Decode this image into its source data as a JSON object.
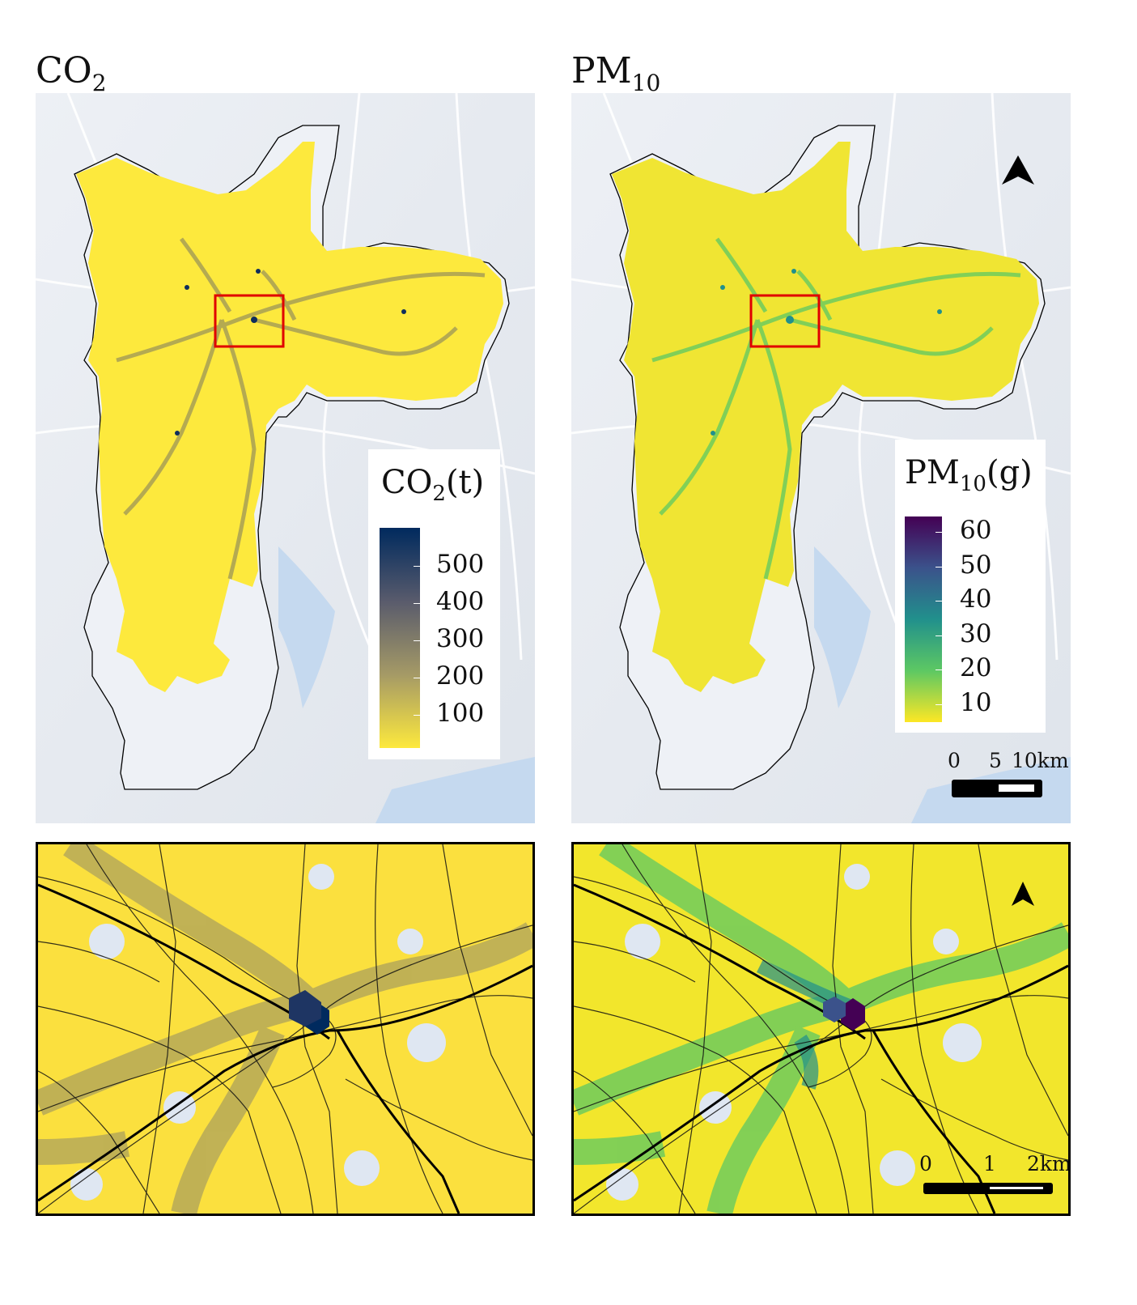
{
  "panels": {
    "co2": {
      "title_main": "CO",
      "title_sub": "2",
      "legend": {
        "title_main": "CO",
        "title_sub": "2",
        "title_suffix": "(t)",
        "ticks": [
          "500",
          "400",
          "300",
          "200",
          "100"
        ],
        "colors": [
          "#002a5e",
          "#595b6c",
          "#a59a66",
          "#fde93d"
        ]
      }
    },
    "pm10": {
      "title_main": "PM",
      "title_sub": "10",
      "legend": {
        "title_main": "PM",
        "title_sub": "10",
        "title_suffix": "(g)",
        "ticks": [
          "60",
          "50",
          "40",
          "30",
          "20",
          "10"
        ],
        "colors": [
          "#440154",
          "#3b528b",
          "#21908c",
          "#5dc863",
          "#fde725"
        ]
      }
    }
  },
  "scalebar_overview": {
    "labels": [
      "0",
      "5",
      "10km"
    ]
  },
  "scalebar_zoom": {
    "labels": [
      "0",
      "1",
      "2km"
    ]
  },
  "map_style": {
    "water": "#c5d9ef",
    "land": "#e7ecf3",
    "roads": "#ffffff",
    "emission_base": "#fde93d",
    "inset_box": "#e00000",
    "city_outline": "#000000"
  }
}
